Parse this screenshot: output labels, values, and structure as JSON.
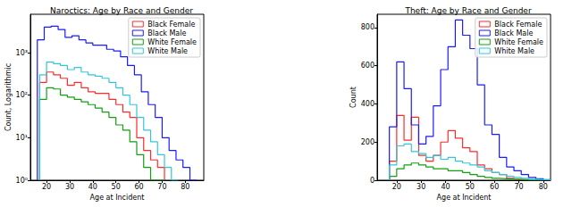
{
  "chart_data": [
    {
      "type": "histogram",
      "title": "Naroctics: Age by Race and Gender",
      "x_label": "Age at Incident",
      "y_label": "Count, Logarithmic",
      "xlim": [
        13,
        88
      ],
      "xticks": [
        20,
        30,
        40,
        50,
        60,
        70,
        80
      ],
      "ylim": [
        1,
        8000
      ],
      "yticks": [
        {
          "value": 1,
          "label": "10⁰"
        },
        {
          "value": 10,
          "label": "10¹"
        },
        {
          "value": 100,
          "label": "10²"
        },
        {
          "value": 1000,
          "label": "10³"
        }
      ],
      "log": "y",
      "grid": false,
      "legend": "upper right",
      "series": [
        {
          "name": "Black Female",
          "color": "#ff2a2a",
          "bins": [
            17,
            20,
            23,
            26,
            29,
            32,
            35,
            38,
            41,
            44,
            47,
            50,
            53,
            56,
            59,
            62,
            65,
            68,
            71
          ],
          "values": [
            200,
            350,
            300,
            250,
            170,
            200,
            150,
            120,
            110,
            110,
            80,
            60,
            40,
            30,
            10,
            5,
            3,
            2
          ]
        },
        {
          "name": "Black Male",
          "color": "#1a1aff",
          "bins": [
            16,
            19,
            22,
            25,
            28,
            31,
            34,
            37,
            40,
            43,
            46,
            49,
            52,
            55,
            58,
            61,
            64,
            67,
            70,
            73,
            76,
            79,
            82,
            85
          ],
          "values": [
            2000,
            4000,
            4200,
            3500,
            2300,
            2500,
            2000,
            1700,
            1500,
            1500,
            1200,
            1100,
            800,
            500,
            300,
            120,
            60,
            30,
            10,
            5,
            3,
            2,
            1
          ]
        },
        {
          "name": "White Female",
          "color": "#10a010",
          "bins": [
            17,
            20,
            23,
            26,
            29,
            32,
            35,
            38,
            41,
            44,
            47,
            50,
            53,
            56,
            59,
            62,
            65,
            68,
            71
          ],
          "values": [
            80,
            150,
            140,
            100,
            90,
            80,
            70,
            60,
            50,
            40,
            30,
            20,
            15,
            8,
            4,
            2,
            1,
            1
          ]
        },
        {
          "name": "White Male",
          "color": "#30c8d8",
          "bins": [
            17,
            20,
            23,
            26,
            29,
            32,
            35,
            38,
            41,
            44,
            47,
            50,
            53,
            56,
            59,
            62,
            65,
            68,
            71,
            74,
            77
          ],
          "values": [
            300,
            600,
            550,
            500,
            400,
            450,
            350,
            300,
            280,
            250,
            200,
            150,
            100,
            60,
            30,
            15,
            8,
            4,
            2,
            1
          ]
        }
      ]
    },
    {
      "type": "histogram",
      "title": "Theft: Age by Race and Gender",
      "x_label": "Age at Incident",
      "y_label": "Count",
      "xlim": [
        12,
        83
      ],
      "xticks": [
        20,
        30,
        40,
        50,
        60,
        70,
        80
      ],
      "ylim": [
        0,
        870
      ],
      "yticks": [
        0,
        200,
        400,
        600,
        800
      ],
      "grid": false,
      "legend": "upper right",
      "series": [
        {
          "name": "Black Female",
          "color": "#ff2a2a",
          "bins": [
            17,
            20,
            23,
            26,
            29,
            32,
            35,
            38,
            41,
            44,
            47,
            50,
            53,
            56,
            59,
            62,
            65,
            68,
            71,
            74,
            77
          ],
          "values": [
            100,
            340,
            210,
            330,
            130,
            100,
            130,
            200,
            260,
            220,
            170,
            150,
            80,
            60,
            40,
            30,
            10,
            5,
            3,
            2
          ]
        },
        {
          "name": "Black Male",
          "color": "#1a1aff",
          "bins": [
            17,
            20,
            23,
            26,
            29,
            32,
            35,
            38,
            41,
            44,
            47,
            50,
            53,
            56,
            59,
            62,
            65,
            68,
            71,
            74,
            77,
            80,
            83
          ],
          "values": [
            280,
            620,
            480,
            290,
            190,
            230,
            390,
            580,
            700,
            840,
            760,
            690,
            500,
            290,
            240,
            120,
            70,
            50,
            30,
            15,
            8,
            3
          ]
        },
        {
          "name": "White Female",
          "color": "#10a010",
          "bins": [
            17,
            20,
            23,
            26,
            29,
            32,
            35,
            38,
            41,
            44,
            47,
            50,
            53,
            56,
            59,
            62,
            65,
            68,
            71,
            74,
            77,
            80
          ],
          "values": [
            20,
            60,
            80,
            90,
            80,
            70,
            60,
            60,
            50,
            50,
            40,
            30,
            20,
            15,
            10,
            8,
            5,
            3,
            2,
            1,
            1
          ]
        },
        {
          "name": "White Male",
          "color": "#30c8d8",
          "bins": [
            17,
            20,
            23,
            26,
            29,
            32,
            35,
            38,
            41,
            44,
            47,
            50,
            53,
            56,
            59,
            62,
            65,
            68,
            71,
            74,
            77,
            80,
            83
          ],
          "values": [
            80,
            180,
            190,
            150,
            140,
            120,
            130,
            110,
            120,
            100,
            90,
            80,
            70,
            50,
            40,
            30,
            20,
            15,
            10,
            5,
            3,
            2
          ]
        }
      ]
    }
  ]
}
